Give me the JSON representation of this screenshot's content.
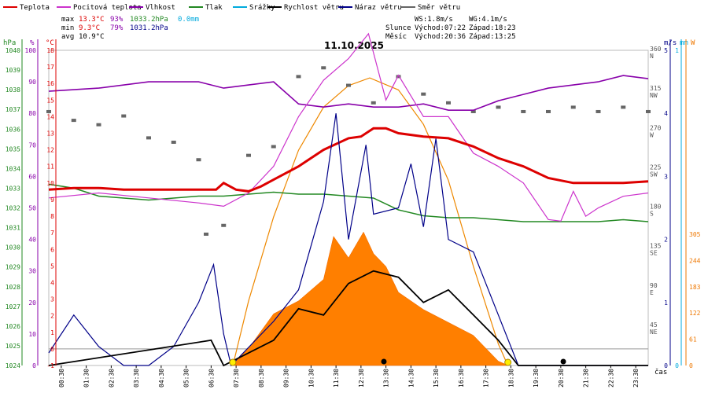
{
  "legend": [
    {
      "label": "Teplota",
      "color": "#dd0000"
    },
    {
      "label": "Pocitová teplota",
      "color": "#cc33cc"
    },
    {
      "label": "Vlhkost",
      "color": "#8800aa"
    },
    {
      "label": "Tlak",
      "color": "#228822"
    },
    {
      "label": "Srážky",
      "color": "#00aadd"
    },
    {
      "label": "Rychlost větru",
      "color": "#000000"
    },
    {
      "label": "Náraz větru",
      "color": "#000088"
    },
    {
      "label": "Směr větru",
      "color": "#666666"
    }
  ],
  "stats": {
    "max_label": "max",
    "min_label": "min",
    "avg_label": "avg",
    "max_temp": "13.3°C",
    "max_hum": "93%",
    "max_press": "1033.2hPa",
    "max_rain": "0.0mm",
    "min_temp": "9.3°C",
    "min_hum": "79%",
    "min_press": "1031.2hPa",
    "avg_temp": "10.9°C"
  },
  "wind": {
    "ws": "WS:1.8m/s",
    "wg": "WG:4.1m/s"
  },
  "sun": {
    "label": "Slunce",
    "rise": "Východ:07:22",
    "set": "Západ:18:23"
  },
  "moon": {
    "label": "Měsíc",
    "rise": "Východ:20:36",
    "set": "Západ:13:25"
  },
  "date": "11.10.2025",
  "units": {
    "hpa": "hPa",
    "pct": "%",
    "degc": "°C",
    "ms": "m/s",
    "mm": "mm",
    "w": "W",
    "time": "čas"
  },
  "time_ticks": [
    "00:30",
    "01:30",
    "02:30",
    "03:30",
    "04:30",
    "05:30",
    "06:30",
    "07:30",
    "08:30",
    "09:30",
    "10:30",
    "11:30",
    "12:30",
    "13:30",
    "14:30",
    "15:30",
    "16:30",
    "17:30",
    "18:30",
    "19:30",
    "20:30",
    "21:30",
    "22:30",
    "23:30"
  ],
  "time_ticks_alt": [
    "01:00",
    "02:00",
    "03:00",
    "04:00",
    "05:00",
    "06:00",
    "07:00",
    "08:00",
    "09:00",
    "10:00",
    "11:00",
    "12:00",
    "13:00",
    "14:00",
    "15:00",
    "16:00",
    "17:00",
    "18:00",
    "19:00",
    "20:00",
    "21:00",
    "22:00",
    "23:00"
  ],
  "axes": {
    "pressure": [
      "1024",
      "1025",
      "1026",
      "1027",
      "1028",
      "1029",
      "1030",
      "1031",
      "1032",
      "1033",
      "1034",
      "1035",
      "1036",
      "1037",
      "1038",
      "1039",
      "1040"
    ],
    "humidity": [
      "0",
      "10",
      "20",
      "30",
      "40",
      "50",
      "60",
      "70",
      "80",
      "90",
      "100"
    ],
    "temperature": [
      "-1",
      "0",
      "1",
      "2",
      "3",
      "4",
      "5",
      "6",
      "7",
      "8",
      "9",
      "10",
      "11",
      "12",
      "13",
      "14",
      "15",
      "16",
      "17",
      "18"
    ],
    "direction": [
      {
        "deg": "45",
        "dir": "NE"
      },
      {
        "deg": "90",
        "dir": "E"
      },
      {
        "deg": "135",
        "dir": "SE"
      },
      {
        "deg": "180",
        "dir": "S"
      },
      {
        "deg": "225",
        "dir": "SW"
      },
      {
        "deg": "270",
        "dir": "W"
      },
      {
        "deg": "315",
        "dir": "NW"
      },
      {
        "deg": "360",
        "dir": "N"
      }
    ],
    "wind_speed": [
      "0",
      "1",
      "2",
      "3",
      "4",
      "5"
    ],
    "rain": [
      "0",
      "1"
    ],
    "solar": [
      "0",
      "61",
      "122",
      "183",
      "244",
      "305",
      "366",
      "427",
      "488",
      "549",
      "610",
      "671",
      "732"
    ]
  },
  "chart_data": {
    "type": "line",
    "title": "11.10.2025",
    "x_unit": "hour",
    "temperature": [
      [
        0,
        9.6
      ],
      [
        1,
        9.7
      ],
      [
        2,
        9.7
      ],
      [
        3,
        9.6
      ],
      [
        4,
        9.6
      ],
      [
        5,
        9.6
      ],
      [
        6,
        9.6
      ],
      [
        6.7,
        9.6
      ],
      [
        7,
        10.0
      ],
      [
        7.5,
        9.6
      ],
      [
        8,
        9.5
      ],
      [
        8.5,
        9.8
      ],
      [
        9,
        10.2
      ],
      [
        10,
        11.0
      ],
      [
        11,
        12.0
      ],
      [
        12,
        12.7
      ],
      [
        12.5,
        12.8
      ],
      [
        13,
        13.3
      ],
      [
        13.5,
        13.3
      ],
      [
        14,
        13.0
      ],
      [
        15,
        12.8
      ],
      [
        16,
        12.7
      ],
      [
        17,
        12.2
      ],
      [
        18,
        11.5
      ],
      [
        19,
        11.0
      ],
      [
        20,
        10.3
      ],
      [
        21,
        10.0
      ],
      [
        22,
        10.0
      ],
      [
        23,
        10.0
      ],
      [
        24,
        10.1
      ]
    ],
    "feels_like": [
      [
        0,
        9.1
      ],
      [
        2,
        9.4
      ],
      [
        4,
        9.1
      ],
      [
        6,
        8.8
      ],
      [
        7,
        8.6
      ],
      [
        8,
        9.4
      ],
      [
        9,
        11.0
      ],
      [
        10,
        14.0
      ],
      [
        11,
        16.2
      ],
      [
        12,
        17.5
      ],
      [
        12.8,
        19.0
      ],
      [
        13.5,
        15.0
      ],
      [
        14,
        16.5
      ],
      [
        15,
        14.0
      ],
      [
        16,
        14.0
      ],
      [
        17,
        11.8
      ],
      [
        18,
        11.0
      ],
      [
        19,
        10.0
      ],
      [
        20,
        7.8
      ],
      [
        20.5,
        7.7
      ],
      [
        21,
        9.5
      ],
      [
        21.5,
        8.0
      ],
      [
        22,
        8.5
      ],
      [
        23,
        9.2
      ],
      [
        24,
        9.4
      ]
    ],
    "humidity": [
      [
        0,
        87
      ],
      [
        2,
        88
      ],
      [
        4,
        90
      ],
      [
        6,
        90
      ],
      [
        7,
        88
      ],
      [
        8,
        89
      ],
      [
        9,
        90
      ],
      [
        10,
        83
      ],
      [
        11,
        82
      ],
      [
        12,
        83
      ],
      [
        13,
        82
      ],
      [
        14,
        82
      ],
      [
        15,
        83
      ],
      [
        16,
        81
      ],
      [
        17,
        81
      ],
      [
        18,
        84
      ],
      [
        19,
        86
      ],
      [
        20,
        88
      ],
      [
        21,
        89
      ],
      [
        22,
        90
      ],
      [
        23,
        92
      ],
      [
        24,
        91
      ]
    ],
    "pressure": [
      [
        0,
        1033.2
      ],
      [
        1,
        1033.0
      ],
      [
        2,
        1032.6
      ],
      [
        3,
        1032.5
      ],
      [
        4,
        1032.4
      ],
      [
        5,
        1032.5
      ],
      [
        6,
        1032.6
      ],
      [
        7,
        1032.6
      ],
      [
        8,
        1032.7
      ],
      [
        9,
        1032.8
      ],
      [
        10,
        1032.7
      ],
      [
        11,
        1032.7
      ],
      [
        12,
        1032.6
      ],
      [
        13,
        1032.5
      ],
      [
        14,
        1031.9
      ],
      [
        15,
        1031.6
      ],
      [
        16,
        1031.5
      ],
      [
        17,
        1031.5
      ],
      [
        18,
        1031.4
      ],
      [
        19,
        1031.3
      ],
      [
        20,
        1031.3
      ],
      [
        21,
        1031.3
      ],
      [
        22,
        1031.3
      ],
      [
        23,
        1031.4
      ],
      [
        24,
        1031.3
      ]
    ],
    "wind_direction": [
      [
        0,
        290
      ],
      [
        1,
        280
      ],
      [
        2,
        275
      ],
      [
        3,
        285
      ],
      [
        4,
        260
      ],
      [
        5,
        255
      ],
      [
        6,
        235
      ],
      [
        6.3,
        150
      ],
      [
        7,
        160
      ],
      [
        8,
        240
      ],
      [
        9,
        250
      ],
      [
        10,
        330
      ],
      [
        11,
        340
      ],
      [
        12,
        320
      ],
      [
        13,
        300
      ],
      [
        14,
        330
      ],
      [
        15,
        310
      ],
      [
        16,
        300
      ],
      [
        17,
        290
      ],
      [
        18,
        295
      ],
      [
        19,
        290
      ],
      [
        20,
        290
      ],
      [
        21,
        295
      ],
      [
        22,
        290
      ],
      [
        23,
        295
      ],
      [
        24,
        290
      ]
    ],
    "wind_speed": [
      [
        0,
        0
      ],
      [
        6.5,
        0.4
      ],
      [
        7,
        0
      ],
      [
        9,
        0.4
      ],
      [
        10,
        0.9
      ],
      [
        11,
        0.8
      ],
      [
        12,
        1.3
      ],
      [
        13,
        1.5
      ],
      [
        14,
        1.4
      ],
      [
        15,
        1.0
      ],
      [
        16,
        1.2
      ],
      [
        17,
        0.8
      ],
      [
        18,
        0.4
      ],
      [
        18.8,
        0
      ],
      [
        24,
        0
      ]
    ],
    "wind_gust": [
      [
        0,
        0.2
      ],
      [
        1,
        0.8
      ],
      [
        2,
        0.3
      ],
      [
        3,
        0
      ],
      [
        4,
        0
      ],
      [
        5,
        0.3
      ],
      [
        6,
        1.0
      ],
      [
        6.6,
        1.6
      ],
      [
        7,
        0.5
      ],
      [
        7.3,
        0
      ],
      [
        9,
        0.7
      ],
      [
        10,
        1.2
      ],
      [
        11,
        2.6
      ],
      [
        11.5,
        4.0
      ],
      [
        12,
        2.0
      ],
      [
        12.7,
        3.5
      ],
      [
        13,
        2.4
      ],
      [
        14,
        2.5
      ],
      [
        14.5,
        3.2
      ],
      [
        15,
        2.2
      ],
      [
        15.5,
        3.6
      ],
      [
        16,
        2.0
      ],
      [
        17,
        1.8
      ],
      [
        17.5,
        1.3
      ],
      [
        18,
        0.8
      ],
      [
        18.8,
        0
      ],
      [
        24,
        0
      ]
    ],
    "solar": [
      [
        7.3,
        0
      ],
      [
        8,
        40
      ],
      [
        9,
        120
      ],
      [
        10,
        150
      ],
      [
        10.5,
        175
      ],
      [
        11,
        200
      ],
      [
        11.4,
        300
      ],
      [
        12,
        250
      ],
      [
        12.6,
        310
      ],
      [
        13,
        260
      ],
      [
        13.5,
        230
      ],
      [
        14,
        170
      ],
      [
        15,
        130
      ],
      [
        16,
        100
      ],
      [
        17,
        70
      ],
      [
        17.5,
        40
      ],
      [
        18,
        10
      ],
      [
        18.4,
        0
      ]
    ],
    "solar_theoretical": [
      [
        7.37,
        0
      ],
      [
        8,
        150
      ],
      [
        9,
        345
      ],
      [
        10,
        500
      ],
      [
        11,
        600
      ],
      [
        12,
        650
      ],
      [
        12.85,
        668
      ],
      [
        14,
        640
      ],
      [
        15,
        560
      ],
      [
        16,
        430
      ],
      [
        17,
        230
      ],
      [
        18,
        50
      ],
      [
        18.38,
        0
      ]
    ],
    "rain": [],
    "sunrise": "07:22",
    "sunset": "18:23",
    "moonrise": "20:36",
    "moonset": "13:25",
    "ranges": {
      "temperature": [
        -1,
        18
      ],
      "pressure": [
        1024,
        1040
      ],
      "humidity": [
        0,
        100
      ],
      "direction": [
        0,
        360
      ],
      "wind": [
        0,
        5
      ],
      "solar": [
        0,
        732
      ],
      "time": [
        0,
        24
      ]
    },
    "grid": false
  }
}
